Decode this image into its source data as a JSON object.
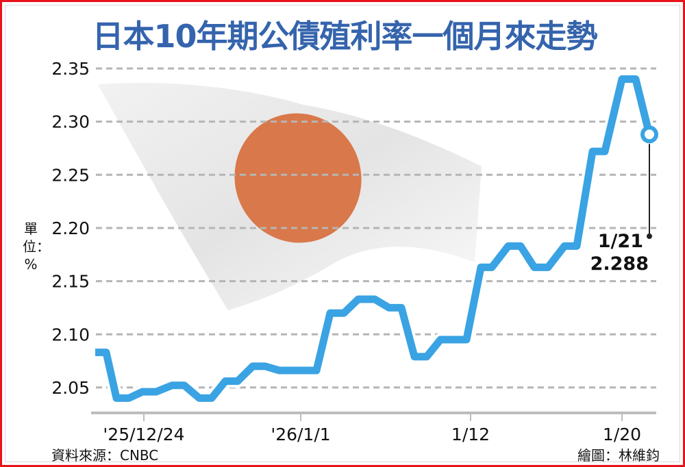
{
  "colors": {
    "title": "#3564ad",
    "line": "#3aa3e3",
    "border": "#e8141b",
    "flag_sun": "#d9784a"
  },
  "title": "日本10年期公債殖利率一個月來走勢",
  "unit_label": "單位：%",
  "source": "資料來源：CNBC",
  "credit": "繪圖：林維鈞",
  "chart_data": {
    "type": "line",
    "title": "日本10年期公債殖利率一個月來走勢",
    "ylabel": "單位：%",
    "ylim": [
      2.03,
      2.35
    ],
    "yticks": [
      "2.35",
      "2.30",
      "2.25",
      "2.20",
      "2.15",
      "2.10",
      "2.05"
    ],
    "xticks": [
      "'25/12/24",
      "'26/1/1",
      "1/12",
      "1/20"
    ],
    "grid": true,
    "background_image": "japan-flag",
    "points": [
      {
        "date": "2025-12-19",
        "value": 2.083
      },
      {
        "date": "2025-12-22",
        "value": 2.04
      },
      {
        "date": "2025-12-23",
        "value": 2.046
      },
      {
        "date": "2025-12-24",
        "value": 2.052
      },
      {
        "date": "2025-12-25",
        "value": 2.04
      },
      {
        "date": "2025-12-26",
        "value": 2.056
      },
      {
        "date": "2025-12-29",
        "value": 2.07
      },
      {
        "date": "2025-12-30",
        "value": 2.066
      },
      {
        "date": "2026-01-05",
        "value": 2.12
      },
      {
        "date": "2026-01-06",
        "value": 2.133
      },
      {
        "date": "2026-01-07",
        "value": 2.125
      },
      {
        "date": "2026-01-08",
        "value": 2.079
      },
      {
        "date": "2026-01-09",
        "value": 2.095
      },
      {
        "date": "2026-01-13",
        "value": 2.163
      },
      {
        "date": "2026-01-14",
        "value": 2.183
      },
      {
        "date": "2026-01-15",
        "value": 2.163
      },
      {
        "date": "2026-01-16",
        "value": 2.183
      },
      {
        "date": "2026-01-19",
        "value": 2.272
      },
      {
        "date": "2026-01-20",
        "value": 2.34
      },
      {
        "date": "2026-01-21",
        "value": 2.288
      }
    ],
    "annotation": {
      "date": "1/21",
      "value": "2.288"
    }
  }
}
